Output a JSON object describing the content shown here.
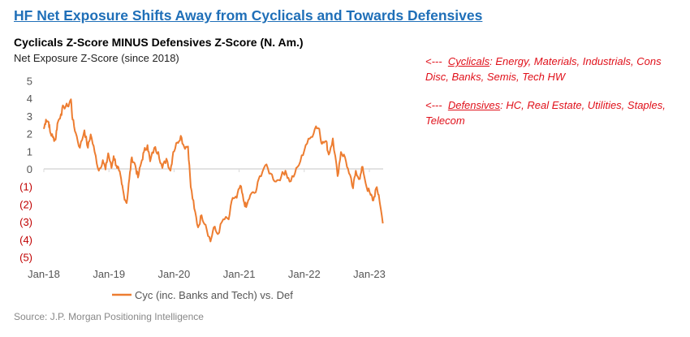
{
  "title": "HF Net Exposure Shifts Away from Cyclicals and Towards Defensives",
  "notes": [
    {
      "arrow": "<---",
      "term": "Cyclicals",
      "text": ": Energy, Materials, Industrials, Cons Disc, Banks, Semis, Tech HW"
    },
    {
      "arrow": "<---",
      "term": "Defensives",
      "text": ": HC, Real Estate, Utilities, Staples, Telecom"
    }
  ],
  "source": "Source: J.P. Morgan Positioning Intelligence",
  "colors": {
    "line": "#ed7d31",
    "negative_tick": "#c00000",
    "title": "#1f6fb8",
    "note": "#e0101a"
  },
  "chart_data": {
    "type": "line",
    "title": "Cyclicals Z-Score MINUS Defensives Z-Score (N. Am.)",
    "ylabel": "Net Exposure Z-Score (since 2018)",
    "xlabel": "",
    "ylim": [
      -5,
      5
    ],
    "xlim": [
      2018.0,
      2023.22
    ],
    "yticks": [
      {
        "v": 5,
        "label": "5"
      },
      {
        "v": 4,
        "label": "4"
      },
      {
        "v": 3,
        "label": "3"
      },
      {
        "v": 2,
        "label": "2"
      },
      {
        "v": 1,
        "label": "1"
      },
      {
        "v": 0,
        "label": "0"
      },
      {
        "v": -1,
        "label": "(1)"
      },
      {
        "v": -2,
        "label": "(2)"
      },
      {
        "v": -3,
        "label": "(3)"
      },
      {
        "v": -4,
        "label": "(4)"
      },
      {
        "v": -5,
        "label": "(5)"
      }
    ],
    "xticks": [
      {
        "v": 2018,
        "label": "Jan-18"
      },
      {
        "v": 2019,
        "label": "Jan-19"
      },
      {
        "v": 2020,
        "label": "Jan-20"
      },
      {
        "v": 2021,
        "label": "Jan-21"
      },
      {
        "v": 2022,
        "label": "Jan-22"
      },
      {
        "v": 2023,
        "label": "Jan-23"
      }
    ],
    "legend": {
      "position": "bottom",
      "entries": [
        "Cyc (inc. Banks and Tech) vs. Def"
      ]
    },
    "series": [
      {
        "name": "Cyc (inc. Banks and Tech) vs. Def",
        "x": [
          2018.0,
          2018.033,
          2018.075,
          2018.096,
          2018.137,
          2018.179,
          2018.208,
          2018.262,
          2018.303,
          2018.366,
          2018.416,
          2018.441,
          2018.49,
          2018.553,
          2018.623,
          2018.677,
          2018.719,
          2018.781,
          2018.844,
          2018.906,
          2018.948,
          2018.989,
          2019.039,
          2019.072,
          2019.114,
          2019.155,
          2019.197,
          2019.23,
          2019.272,
          2019.313,
          2019.351,
          2019.405,
          2019.446,
          2019.496,
          2019.538,
          2019.592,
          2019.633,
          2019.696,
          2019.758,
          2019.82,
          2019.883,
          2019.945,
          2019.987,
          2020.049,
          2020.103,
          2020.153,
          2020.215,
          2020.257,
          2020.311,
          2020.369,
          2020.423,
          2020.485,
          2020.56,
          2020.61,
          2020.672,
          2020.755,
          2020.839,
          2020.901,
          2020.963,
          2021.017,
          2021.067,
          2021.109,
          2021.171,
          2021.254,
          2021.317,
          2021.4,
          2021.483,
          2021.566,
          2021.649,
          2021.711,
          2021.774,
          2021.857,
          2021.94,
          2022.023,
          2022.106,
          2022.181,
          2022.231,
          2022.272,
          2022.335,
          2022.376,
          2022.439,
          2022.513,
          2022.563,
          2022.626,
          2022.688,
          2022.75,
          2022.792,
          2022.854,
          2022.896,
          2022.958,
          2023.02,
          2023.062,
          2023.104,
          2023.145,
          2023.207
        ],
        "y": [
          2.27,
          2.8,
          2.65,
          2.1,
          1.8,
          1.65,
          2.57,
          3.1,
          3.55,
          3.55,
          3.95,
          2.8,
          2.04,
          1.2,
          2.19,
          1.2,
          1.96,
          0.96,
          -0.1,
          0.5,
          -0.03,
          0.89,
          0.05,
          0.73,
          0.2,
          -0.1,
          -0.87,
          -1.48,
          -1.94,
          -0.57,
          0.66,
          0.2,
          -0.49,
          0.35,
          0.96,
          1.35,
          0.43,
          1.19,
          0.96,
          0.05,
          0.58,
          -0.1,
          0.96,
          1.5,
          1.88,
          1.27,
          1.27,
          -1.03,
          -2.25,
          -3.32,
          -2.63,
          -3.17,
          -4.12,
          -3.32,
          -3.7,
          -2.86,
          -2.86,
          -1.64,
          -1.64,
          -0.95,
          -1.79,
          -2.17,
          -1.49,
          -1.33,
          -0.41,
          0.2,
          -0.26,
          -0.72,
          -0.41,
          -0.1,
          -0.72,
          -0.26,
          0.43,
          1.35,
          1.81,
          2.42,
          2.27,
          1.42,
          1.58,
          0.81,
          1.73,
          -0.41,
          0.96,
          0.66,
          -0.26,
          -1.1,
          -0.1,
          -0.57,
          0.12,
          -1.03,
          -1.48,
          -1.79,
          -1.1,
          -1.48,
          -3.09
        ]
      }
    ]
  }
}
